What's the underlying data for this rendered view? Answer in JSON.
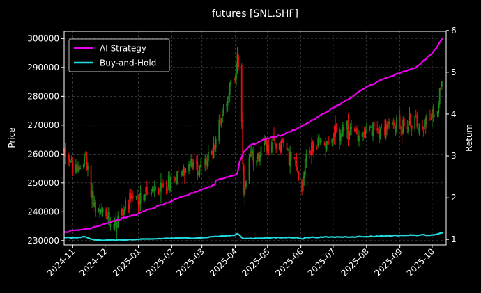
{
  "chart_data": {
    "type": "candlestick+line",
    "title": "futures [SNL.SHF]",
    "ylabel_left": "Price",
    "ylabel_right": "Return",
    "ylim_left": [
      228500,
      302500
    ],
    "ylim_right": [
      0.87,
      5.98
    ],
    "yticks_left": [
      230000,
      240000,
      250000,
      260000,
      270000,
      280000,
      290000,
      300000
    ],
    "yticks_left_labels": [
      "230000",
      "240000",
      "250000",
      "260000",
      "270000",
      "280000",
      "290000",
      "300000"
    ],
    "yticks_right": [
      1,
      2,
      3,
      4,
      5,
      6
    ],
    "yticks_right_labels": [
      "1",
      "2",
      "3",
      "4",
      "5",
      "6"
    ],
    "xlim": [
      "2024-10-24",
      "2025-10-14"
    ],
    "xticks": [
      "2024-11-01",
      "2024-12-01",
      "2025-01-01",
      "2025-02-01",
      "2025-03-01",
      "2025-04-01",
      "2025-05-01",
      "2025-06-01",
      "2025-07-01",
      "2025-08-01",
      "2025-09-01",
      "2025-10-01"
    ],
    "xtick_labels": [
      "2024-11",
      "2024-12",
      "2025-01",
      "2025-02",
      "2025-03",
      "2025-04",
      "2025-05",
      "2025-06",
      "2025-07",
      "2025-08",
      "2025-09",
      "2025-10"
    ],
    "grid": true,
    "legend_position": "top-left",
    "colors": {
      "up": "#1a8a1a",
      "down": "#e01010",
      "ai": "#ee00ee",
      "bh": "#22dde0"
    },
    "price_anchors": [
      [
        "2024-10-24",
        262000
      ],
      [
        "2024-11-05",
        253000
      ],
      [
        "2024-11-12",
        259000
      ],
      [
        "2024-11-18",
        248000
      ],
      [
        "2024-11-22",
        240000
      ],
      [
        "2024-12-02",
        238000
      ],
      [
        "2024-12-10",
        236000
      ],
      [
        "2024-12-20",
        242000
      ],
      [
        "2025-01-06",
        246000
      ],
      [
        "2025-01-20",
        247000
      ],
      [
        "2025-02-03",
        252000
      ],
      [
        "2025-02-17",
        256000
      ],
      [
        "2025-02-28",
        255000
      ],
      [
        "2025-03-10",
        260000
      ],
      [
        "2025-03-17",
        270000
      ],
      [
        "2025-03-24",
        280000
      ],
      [
        "2025-04-01",
        287000
      ],
      [
        "2025-04-03",
        296000
      ],
      [
        "2025-04-07",
        268000
      ],
      [
        "2025-04-09",
        245000
      ],
      [
        "2025-04-15",
        258000
      ],
      [
        "2025-04-28",
        262000
      ],
      [
        "2025-05-15",
        264000
      ],
      [
        "2025-05-28",
        255000
      ],
      [
        "2025-06-02",
        248000
      ],
      [
        "2025-06-05",
        260000
      ],
      [
        "2025-06-20",
        264000
      ],
      [
        "2025-07-01",
        266000
      ],
      [
        "2025-07-15",
        268000
      ],
      [
        "2025-08-01",
        267000
      ],
      [
        "2025-08-15",
        269000
      ],
      [
        "2025-09-01",
        270000
      ],
      [
        "2025-09-15",
        271000
      ],
      [
        "2025-09-30",
        272000
      ],
      [
        "2025-10-06",
        276000
      ],
      [
        "2025-10-10",
        287000
      ]
    ],
    "series": [
      {
        "name": "AI Strategy",
        "points": [
          [
            "2024-10-24",
            1.18
          ],
          [
            "2024-11-15",
            1.26
          ],
          [
            "2024-12-01",
            1.38
          ],
          [
            "2025-01-01",
            1.62
          ],
          [
            "2025-02-01",
            1.92
          ],
          [
            "2025-03-01",
            2.2
          ],
          [
            "2025-03-13",
            2.31
          ],
          [
            "2025-03-14",
            2.42
          ],
          [
            "2025-03-31",
            2.54
          ],
          [
            "2025-04-03",
            2.58
          ],
          [
            "2025-04-05",
            2.85
          ],
          [
            "2025-04-09",
            3.1
          ],
          [
            "2025-04-15",
            3.25
          ],
          [
            "2025-05-01",
            3.42
          ],
          [
            "2025-05-15",
            3.5
          ],
          [
            "2025-06-01",
            3.7
          ],
          [
            "2025-06-15",
            3.9
          ],
          [
            "2025-07-01",
            4.15
          ],
          [
            "2025-07-15",
            4.35
          ],
          [
            "2025-08-01",
            4.65
          ],
          [
            "2025-08-15",
            4.82
          ],
          [
            "2025-09-01",
            4.98
          ],
          [
            "2025-09-15",
            5.1
          ],
          [
            "2025-10-01",
            5.45
          ],
          [
            "2025-10-11",
            5.82
          ]
        ]
      },
      {
        "name": "Buy-and-Hold",
        "points": [
          [
            "2024-10-24",
            1.05
          ],
          [
            "2024-11-05",
            1.04
          ],
          [
            "2024-11-12",
            1.07
          ],
          [
            "2024-11-20",
            1.0
          ],
          [
            "2024-12-01",
            0.98
          ],
          [
            "2025-01-01",
            1.0
          ],
          [
            "2025-02-01",
            1.03
          ],
          [
            "2025-03-01",
            1.04
          ],
          [
            "2025-03-12",
            1.07
          ],
          [
            "2025-03-31",
            1.1
          ],
          [
            "2025-04-03",
            1.14
          ],
          [
            "2025-04-07",
            1.05
          ],
          [
            "2025-04-10",
            1.02
          ],
          [
            "2025-05-01",
            1.04
          ],
          [
            "2025-05-28",
            1.05
          ],
          [
            "2025-06-03",
            1.01
          ],
          [
            "2025-06-06",
            1.05
          ],
          [
            "2025-07-01",
            1.06
          ],
          [
            "2025-08-01",
            1.07
          ],
          [
            "2025-09-01",
            1.1
          ],
          [
            "2025-10-01",
            1.11
          ],
          [
            "2025-10-11",
            1.16
          ]
        ]
      }
    ]
  }
}
